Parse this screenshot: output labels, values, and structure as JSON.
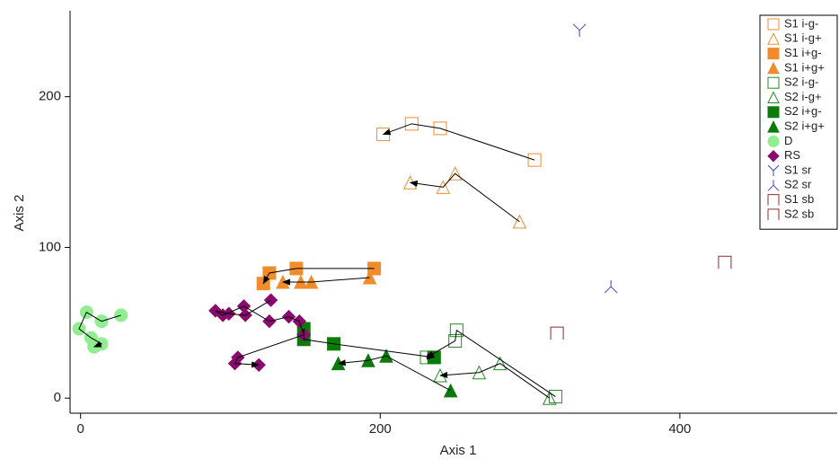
{
  "chart_data": {
    "type": "scatter",
    "x_label": "Axis 1",
    "y_label": "Axis 2",
    "xlim": [
      -7,
      505
    ],
    "ylim": [
      -10,
      257
    ],
    "xticks": [
      0,
      200,
      400
    ],
    "yticks": [
      0,
      100,
      200
    ],
    "legend": "top-right",
    "series": [
      {
        "name": "S1 i-g-",
        "color": "#f08c2c",
        "marker": "square-open",
        "arrows": true,
        "x": [
          303,
          240,
          221,
          202
        ],
        "values": [
          158,
          179,
          182,
          175
        ]
      },
      {
        "name": "S1 i-g+",
        "color": "#f08c2c",
        "marker": "triangle-open",
        "arrows": true,
        "x": [
          293,
          250,
          242,
          220
        ],
        "values": [
          117,
          149,
          140,
          143
        ]
      },
      {
        "name": "S1 i+g-",
        "color": "#f08c2c",
        "marker": "square",
        "arrows": true,
        "x": [
          196,
          144,
          126,
          122
        ],
        "values": [
          86,
          86,
          83,
          76
        ]
      },
      {
        "name": "S1 i+g+",
        "color": "#f08c2c",
        "marker": "triangle",
        "arrows": true,
        "x": [
          193,
          154,
          147,
          135
        ],
        "values": [
          80,
          77,
          77,
          77
        ]
      },
      {
        "name": "S2 i-g-",
        "color": "#218c21",
        "marker": "square-open",
        "arrows": true,
        "x": [
          317,
          251,
          250,
          231
        ],
        "values": [
          1,
          45,
          38,
          27
        ]
      },
      {
        "name": "S2 i-g+",
        "color": "#218c21",
        "marker": "triangle-open",
        "arrows": true,
        "x": [
          313,
          280,
          266,
          240
        ],
        "values": [
          0,
          23,
          17,
          15
        ]
      },
      {
        "name": "S2 i+g-",
        "color": "#0a7a0a",
        "marker": "square",
        "arrows": true,
        "x": [
          149,
          149,
          169,
          236
        ],
        "values": [
          46,
          39,
          36,
          27
        ]
      },
      {
        "name": "S2 i+g+",
        "color": "#0a7a0a",
        "marker": "triangle",
        "arrows": true,
        "x": [
          247,
          204,
          192,
          172
        ],
        "values": [
          5,
          28,
          25,
          23
        ]
      },
      {
        "name": "D",
        "color": "#90ee90",
        "marker": "circle",
        "arrows": true,
        "x": [
          27,
          14,
          4,
          -1,
          7,
          14,
          9
        ],
        "values": [
          55,
          51,
          57,
          46,
          40,
          36,
          34
        ]
      },
      {
        "name": "RS",
        "color": "#8b0a6e",
        "marker": "diamond",
        "arrows": true,
        "x": [
          127,
          110,
          99,
          90,
          95,
          109,
          126,
          139,
          146,
          149,
          105,
          103,
          119
        ],
        "values": [
          65,
          55,
          56,
          58,
          55,
          61,
          51,
          54,
          51,
          42,
          27,
          23,
          22
        ]
      },
      {
        "name": "S1 sr",
        "color": "#4040c0",
        "marker": "y",
        "arrows": false,
        "x": [
          333
        ],
        "values": [
          244
        ]
      },
      {
        "name": "S2 sr",
        "color": "#4040c0",
        "marker": "y-down",
        "arrows": false,
        "x": [
          354
        ],
        "values": [
          74
        ]
      },
      {
        "name": "S1 sb",
        "color": "#8b2d2d",
        "marker": "bracket",
        "arrows": false,
        "x": [
          430
        ],
        "values": [
          90
        ]
      },
      {
        "name": "S2 sb",
        "color": "#8b2d2d",
        "marker": "bracket",
        "arrows": false,
        "x": [
          318
        ],
        "values": [
          43
        ]
      }
    ]
  }
}
